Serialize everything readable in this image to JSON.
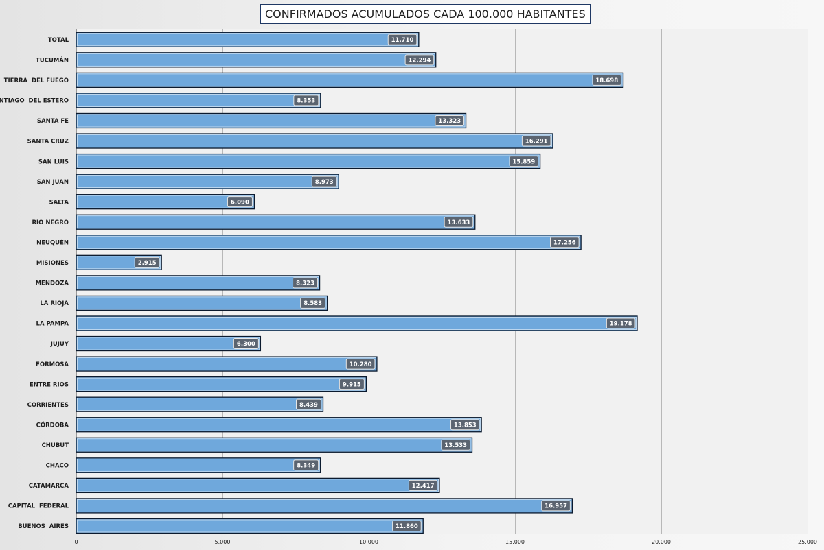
{
  "chart_data": {
    "type": "bar",
    "orientation": "horizontal",
    "title": "CONFIRMADOS ACUMULADOS CADA 100.000 HABITANTES",
    "categories": [
      "TOTAL",
      "TUCUMÁN",
      "TIERRA  DEL FUEGO",
      "SANTIAGO  DEL ESTERO",
      "SANTA FE",
      "SANTA CRUZ",
      "SAN LUIS",
      "SAN JUAN",
      "SALTA",
      "RIO NEGRO",
      "NEUQUÉN",
      "MISIONES",
      "MENDOZA",
      "LA RIOJA",
      "LA PAMPA",
      "JUJUY",
      "FORMOSA",
      "ENTRE RIOS",
      "CORRIENTES",
      "CÓRDOBA",
      "CHUBUT",
      "CHACO",
      "CATAMARCA",
      "CAPITAL  FEDERAL",
      "BUENOS  AIRES"
    ],
    "values": [
      11710,
      12294,
      18698,
      8353,
      13323,
      16291,
      15859,
      8973,
      6090,
      13633,
      17256,
      2915,
      8323,
      8583,
      19178,
      6300,
      10280,
      9915,
      8439,
      13853,
      13533,
      8349,
      12417,
      16957,
      11860
    ],
    "value_labels": [
      "11.710",
      "12.294",
      "18.698",
      "8.353",
      "13.323",
      "16.291",
      "15.859",
      "8.973",
      "6.090",
      "13.633",
      "17.256",
      "2.915",
      "8.323",
      "8.583",
      "19.178",
      "6.300",
      "10.280",
      "9.915",
      "8.439",
      "13.853",
      "13.533",
      "8.349",
      "12.417",
      "16.957",
      "11.860"
    ],
    "xlim": [
      0,
      25000
    ],
    "xticks": [
      0,
      5000,
      10000,
      15000,
      20000,
      25000
    ],
    "xtick_labels": [
      "0",
      "5.000",
      "10.000",
      "15.000",
      "20.000",
      "25.000"
    ],
    "grid": "vertical",
    "legend": "none",
    "colors": {
      "bar_fill": "#6fa8dc",
      "bar_stroke": "#0b1a2e",
      "label_bg": "#5b6470",
      "grid": "#b8b8b8",
      "title_border": "#1f3864"
    }
  }
}
